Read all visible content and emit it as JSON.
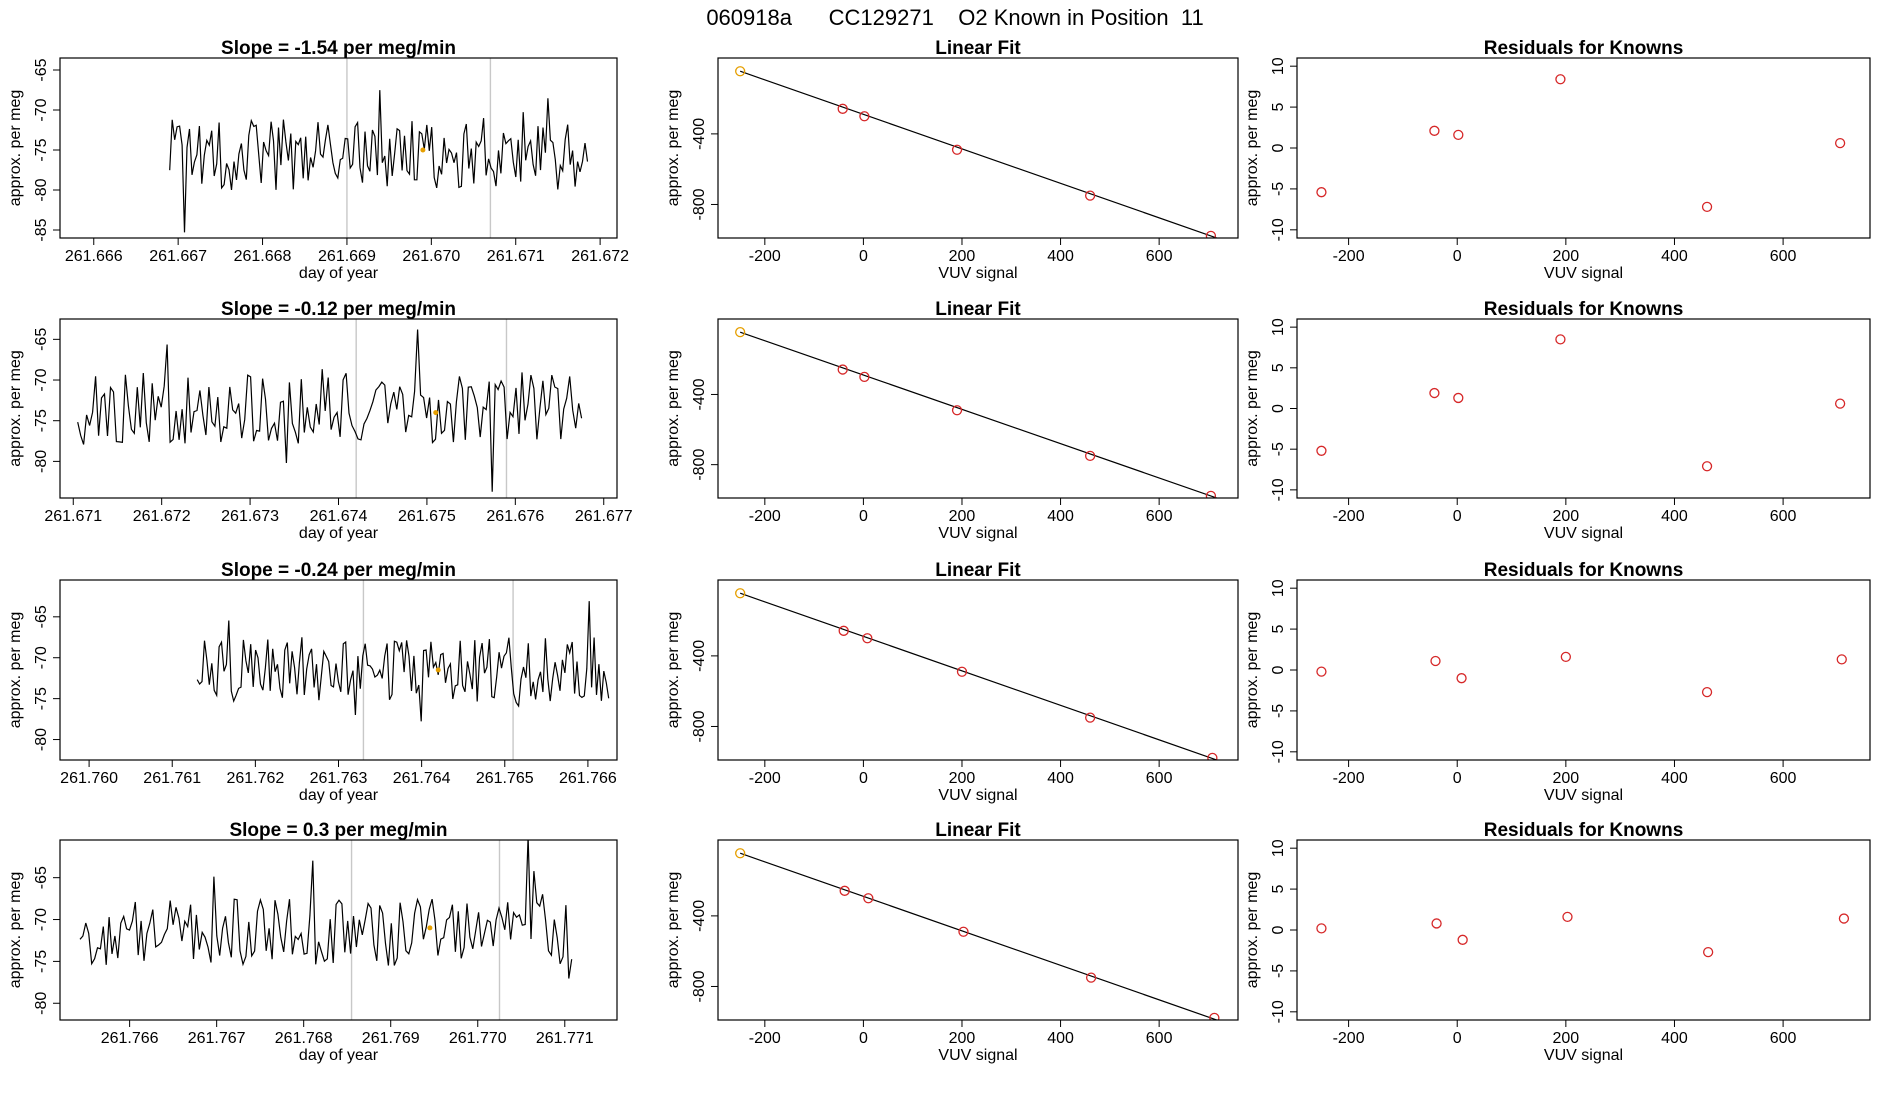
{
  "figure": {
    "title": "060918a      CC129271    O2 Known in Position  11"
  },
  "colors": {
    "line": "#000000",
    "known": "#d62728",
    "highlight": "#e69f00",
    "gridline": "#c8c8c8"
  },
  "chart_data": [
    {
      "type": "line",
      "row": 0,
      "panel": "timeseries",
      "title": "Slope =  -1.54  per meg/min",
      "xlabel": "day of year",
      "ylabel": "approx. per meg",
      "xlim": [
        261.6656,
        261.6722
      ],
      "ylim": [
        -86,
        -63.5
      ],
      "xticks": [
        261.666,
        261.667,
        261.668,
        261.669,
        261.67,
        261.671,
        261.672
      ],
      "xtick_labels": [
        "261.666",
        "261.667",
        "261.668",
        "261.669",
        "261.670",
        "261.671",
        "261.672"
      ],
      "yticks": [
        -85,
        -80,
        -75,
        -70,
        -65
      ],
      "ytick_labels": [
        "-85",
        "-80",
        "-75",
        "-70",
        "-65"
      ],
      "vlines": [
        261.669,
        261.6707
      ],
      "series_seed": 101,
      "series_start": 261.6669,
      "series_end": 261.67185,
      "series_mean": -75.5,
      "series_amp": 4.5,
      "highlight": {
        "x": 261.6699,
        "y": -75.0
      }
    },
    {
      "type": "scatter",
      "row": 0,
      "panel": "fit",
      "title": "Linear Fit",
      "xlabel": "VUV signal",
      "ylabel": "approx. per meg",
      "xlim": [
        -295,
        760
      ],
      "ylim": [
        -990,
        30
      ],
      "xticks": [
        -200,
        0,
        200,
        400,
        600
      ],
      "xtick_labels": [
        "-200",
        "0",
        "200",
        "400",
        "600"
      ],
      "yticks": [
        -400,
        -800
      ],
      "ytick_labels": [
        "-400",
        "-800"
      ],
      "points": [
        [
          -250,
          -45
        ],
        [
          -42,
          -258
        ],
        [
          2,
          -300
        ],
        [
          190,
          -490
        ],
        [
          460,
          -750
        ],
        [
          705,
          -978
        ]
      ],
      "fit_line": [
        [
          -250,
          -45
        ],
        [
          720,
          -993
        ]
      ]
    },
    {
      "type": "scatter",
      "row": 0,
      "panel": "residuals",
      "title": "Residuals for Knowns",
      "xlabel": "VUV signal",
      "ylabel": "approx. per meg",
      "xlim": [
        -295,
        760
      ],
      "ylim": [
        -11,
        11
      ],
      "xticks": [
        -200,
        0,
        200,
        400,
        600
      ],
      "xtick_labels": [
        "-200",
        "0",
        "200",
        "400",
        "600"
      ],
      "yticks": [
        -10,
        -5,
        0,
        5,
        10
      ],
      "ytick_labels": [
        "-10",
        "-5",
        "0",
        "5",
        "10"
      ],
      "points": [
        [
          -250,
          -5.4
        ],
        [
          -42,
          2.1
        ],
        [
          2,
          1.6
        ],
        [
          190,
          8.4
        ],
        [
          460,
          -7.2
        ],
        [
          705,
          0.6
        ]
      ]
    },
    {
      "type": "line",
      "row": 1,
      "panel": "timeseries",
      "title": "Slope =  -0.12  per meg/min",
      "xlabel": "day of year",
      "ylabel": "approx. per meg",
      "xlim": [
        261.67085,
        261.67715
      ],
      "ylim": [
        -84.5,
        -62.5
      ],
      "xticks": [
        261.671,
        261.672,
        261.673,
        261.674,
        261.675,
        261.676,
        261.677
      ],
      "xtick_labels": [
        "261.671",
        "261.672",
        "261.673",
        "261.674",
        "261.675",
        "261.676",
        "261.677"
      ],
      "yticks": [
        -80,
        -75,
        -70,
        -65
      ],
      "ytick_labels": [
        "-80",
        "-75",
        "-70",
        "-65"
      ],
      "vlines": [
        261.6742,
        261.6759
      ],
      "series_seed": 202,
      "series_start": 261.67105,
      "series_end": 261.67675,
      "series_mean": -73.5,
      "series_amp": 4.5,
      "highlight": {
        "x": 261.6751,
        "y": -74.0
      }
    },
    {
      "type": "scatter",
      "row": 1,
      "panel": "fit",
      "title": "Linear Fit",
      "xlabel": "VUV signal",
      "ylabel": "approx. per meg",
      "xlim": [
        -295,
        760
      ],
      "ylim": [
        -990,
        30
      ],
      "xticks": [
        -200,
        0,
        200,
        400,
        600
      ],
      "xtick_labels": [
        "-200",
        "0",
        "200",
        "400",
        "600"
      ],
      "yticks": [
        -400,
        -800
      ],
      "ytick_labels": [
        "-400",
        "-800"
      ],
      "points": [
        [
          -250,
          -45
        ],
        [
          -42,
          -258
        ],
        [
          2,
          -300
        ],
        [
          190,
          -490
        ],
        [
          460,
          -750
        ],
        [
          705,
          -978
        ]
      ],
      "fit_line": [
        [
          -250,
          -45
        ],
        [
          720,
          -993
        ]
      ]
    },
    {
      "type": "scatter",
      "row": 1,
      "panel": "residuals",
      "title": "Residuals for Knowns",
      "xlabel": "VUV signal",
      "ylabel": "approx. per meg",
      "xlim": [
        -295,
        760
      ],
      "ylim": [
        -11,
        11
      ],
      "xticks": [
        -200,
        0,
        200,
        400,
        600
      ],
      "xtick_labels": [
        "-200",
        "0",
        "200",
        "400",
        "600"
      ],
      "yticks": [
        -10,
        -5,
        0,
        5,
        10
      ],
      "ytick_labels": [
        "-10",
        "-5",
        "0",
        "5",
        "10"
      ],
      "points": [
        [
          -250,
          -5.2
        ],
        [
          -42,
          1.9
        ],
        [
          2,
          1.3
        ],
        [
          190,
          8.5
        ],
        [
          460,
          -7.1
        ],
        [
          705,
          0.6
        ]
      ]
    },
    {
      "type": "line",
      "row": 2,
      "panel": "timeseries",
      "title": "Slope =  -0.24  per meg/min",
      "xlabel": "day of year",
      "ylabel": "approx. per meg",
      "xlim": [
        261.75965,
        261.76635
      ],
      "ylim": [
        -82.5,
        -60.5
      ],
      "xticks": [
        261.76,
        261.761,
        261.762,
        261.763,
        261.764,
        261.765,
        261.766
      ],
      "xtick_labels": [
        "261.760",
        "261.761",
        "261.762",
        "261.763",
        "261.764",
        "261.765",
        "261.766"
      ],
      "yticks": [
        -80,
        -75,
        -70,
        -65
      ],
      "ytick_labels": [
        "-80",
        "-75",
        "-70",
        "-65"
      ],
      "vlines": [
        261.7633,
        261.7651
      ],
      "series_seed": 303,
      "series_start": 261.7613,
      "series_end": 261.76625,
      "series_mean": -71.5,
      "series_amp": 4.0,
      "highlight": {
        "x": 261.7642,
        "y": -71.5
      }
    },
    {
      "type": "scatter",
      "row": 2,
      "panel": "fit",
      "title": "Linear Fit",
      "xlabel": "VUV signal",
      "ylabel": "approx. per meg",
      "xlim": [
        -295,
        760
      ],
      "ylim": [
        -990,
        30
      ],
      "xticks": [
        -200,
        0,
        200,
        400,
        600
      ],
      "xtick_labels": [
        "-200",
        "0",
        "200",
        "400",
        "600"
      ],
      "yticks": [
        -400,
        -800
      ],
      "ytick_labels": [
        "-400",
        "-800"
      ],
      "points": [
        [
          -250,
          -45
        ],
        [
          -40,
          -258
        ],
        [
          8,
          -300
        ],
        [
          200,
          -490
        ],
        [
          460,
          -750
        ],
        [
          708,
          -978
        ]
      ],
      "fit_line": [
        [
          -250,
          -45
        ],
        [
          720,
          -993
        ]
      ]
    },
    {
      "type": "scatter",
      "row": 2,
      "panel": "residuals",
      "title": "Residuals for Knowns",
      "xlabel": "VUV signal",
      "ylabel": "approx. per meg",
      "xlim": [
        -295,
        760
      ],
      "ylim": [
        -11,
        11
      ],
      "xticks": [
        -200,
        0,
        200,
        400,
        600
      ],
      "xtick_labels": [
        "-200",
        "0",
        "200",
        "400",
        "600"
      ],
      "yticks": [
        -10,
        -5,
        0,
        5,
        10
      ],
      "ytick_labels": [
        "-10",
        "-5",
        "0",
        "5",
        "10"
      ],
      "points": [
        [
          -250,
          -0.2
        ],
        [
          -40,
          1.1
        ],
        [
          8,
          -1.0
        ],
        [
          200,
          1.6
        ],
        [
          460,
          -2.7
        ],
        [
          708,
          1.3
        ]
      ]
    },
    {
      "type": "line",
      "row": 3,
      "panel": "timeseries",
      "title": "Slope =  0.3  per meg/min",
      "xlabel": "day of year",
      "ylabel": "approx. per meg",
      "xlim": [
        261.7652,
        261.7716
      ],
      "ylim": [
        -82,
        -60.5
      ],
      "xticks": [
        261.766,
        261.767,
        261.768,
        261.769,
        261.77,
        261.771
      ],
      "xtick_labels": [
        "261.766",
        "261.767",
        "261.768",
        "261.769",
        "261.770",
        "261.771"
      ],
      "yticks": [
        -80,
        -75,
        -70,
        -65
      ],
      "ytick_labels": [
        "-80",
        "-75",
        "-70",
        "-65"
      ],
      "vlines": [
        261.76855,
        261.77025
      ],
      "series_seed": 404,
      "series_start": 261.76543,
      "series_end": 261.77108,
      "series_mean": -71.5,
      "series_amp": 4.0,
      "highlight": {
        "x": 261.76945,
        "y": -71.0
      }
    },
    {
      "type": "scatter",
      "row": 3,
      "panel": "fit",
      "title": "Linear Fit",
      "xlabel": "VUV signal",
      "ylabel": "approx. per meg",
      "xlim": [
        -295,
        760
      ],
      "ylim": [
        -990,
        30
      ],
      "xticks": [
        -200,
        0,
        200,
        400,
        600
      ],
      "xtick_labels": [
        "-200",
        "0",
        "200",
        "400",
        "600"
      ],
      "yticks": [
        -400,
        -800
      ],
      "ytick_labels": [
        "-400",
        "-800"
      ],
      "points": [
        [
          -250,
          -45
        ],
        [
          -38,
          -258
        ],
        [
          10,
          -300
        ],
        [
          203,
          -490
        ],
        [
          462,
          -750
        ],
        [
          712,
          -978
        ]
      ],
      "fit_line": [
        [
          -250,
          -45
        ],
        [
          720,
          -993
        ]
      ]
    },
    {
      "type": "scatter",
      "row": 3,
      "panel": "residuals",
      "title": "Residuals for Knowns",
      "xlabel": "VUV signal",
      "ylabel": "approx. per meg",
      "xlim": [
        -295,
        760
      ],
      "ylim": [
        -11,
        11
      ],
      "xticks": [
        -200,
        0,
        200,
        400,
        600
      ],
      "xtick_labels": [
        "-200",
        "0",
        "200",
        "400",
        "600"
      ],
      "yticks": [
        -10,
        -5,
        0,
        5,
        10
      ],
      "ytick_labels": [
        "-10",
        "-5",
        "0",
        "5",
        "10"
      ],
      "points": [
        [
          -250,
          0.2
        ],
        [
          -38,
          0.8
        ],
        [
          10,
          -1.2
        ],
        [
          203,
          1.6
        ],
        [
          462,
          -2.7
        ],
        [
          712,
          1.4
        ]
      ]
    }
  ]
}
